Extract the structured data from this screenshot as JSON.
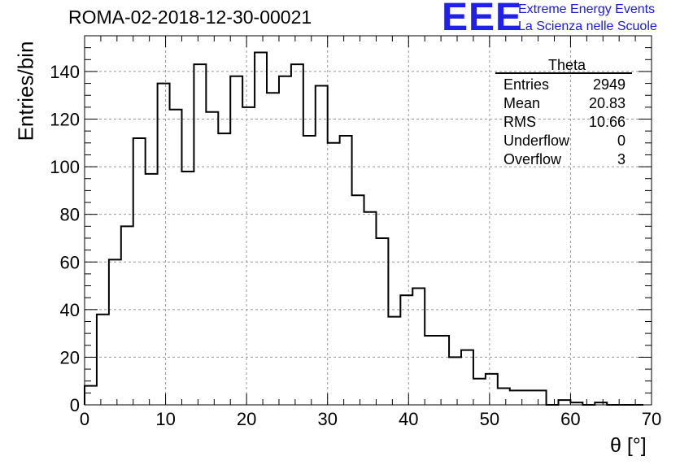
{
  "chart_data": {
    "type": "bar",
    "title": "ROMA-02-2018-12-30-00021",
    "xlabel": "θ [°]",
    "ylabel": "Entries/bin",
    "xlim": [
      0,
      70
    ],
    "ylim": [
      0,
      155
    ],
    "x_ticks": [
      "0",
      "10",
      "20",
      "30",
      "40",
      "50",
      "60",
      "70"
    ],
    "y_ticks": [
      "0",
      "20",
      "40",
      "60",
      "80",
      "100",
      "120",
      "140"
    ],
    "grid": true,
    "histogram": true,
    "bin_width": 1.5,
    "bin_edges_start": 0,
    "values": [
      8,
      38,
      61,
      75,
      112,
      97,
      135,
      124,
      98,
      143,
      123,
      114,
      138,
      125,
      148,
      131,
      138,
      143,
      113,
      134,
      110,
      113,
      88,
      81,
      70,
      37,
      46,
      49,
      29,
      29,
      20,
      23,
      11,
      13,
      7,
      6,
      6,
      6,
      0,
      2,
      1,
      0,
      1,
      0,
      0,
      0,
      0
    ],
    "line_color": "#000000",
    "grid_color": "#999999"
  },
  "stats_box": {
    "title": "Theta",
    "rows": [
      {
        "label": "Entries",
        "value": "2949"
      },
      {
        "label": "Mean",
        "value": "20.83"
      },
      {
        "label": "RMS",
        "value": "10.66"
      },
      {
        "label": "Underflow",
        "value": "0"
      },
      {
        "label": "Overflow",
        "value": "3"
      }
    ]
  },
  "logo": {
    "mark": "EEE",
    "line1": "Extreme Energy Events",
    "line2": "La Scienza nelle Scuole",
    "color": "#2020e8"
  }
}
